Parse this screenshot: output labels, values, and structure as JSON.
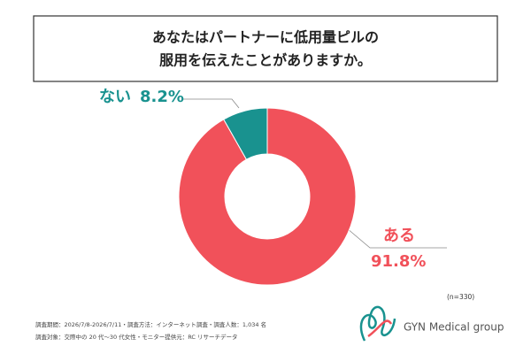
{
  "chart_data": {
    "type": "donut",
    "title": [
      "あなたはパートナーに低用量ピルの",
      "服用を伝えたことがありますか。"
    ],
    "categories": [
      "ない",
      "ある"
    ],
    "values": [
      8.2,
      91.8
    ],
    "value_labels": [
      "8.2%",
      "91.8%"
    ],
    "colors": [
      "#19928f",
      "#f1515a"
    ],
    "sample_size": "(n=330)",
    "notes": [
      "調査期間：2026/7/8-2026/7/11・調査方法：インターネット調査・調査人数：1,034 名",
      "調査対象：交際中の 20 代〜30 代女性・モニター提供元：RC リサーチデータ"
    ],
    "brand": "GYN Medical group"
  }
}
